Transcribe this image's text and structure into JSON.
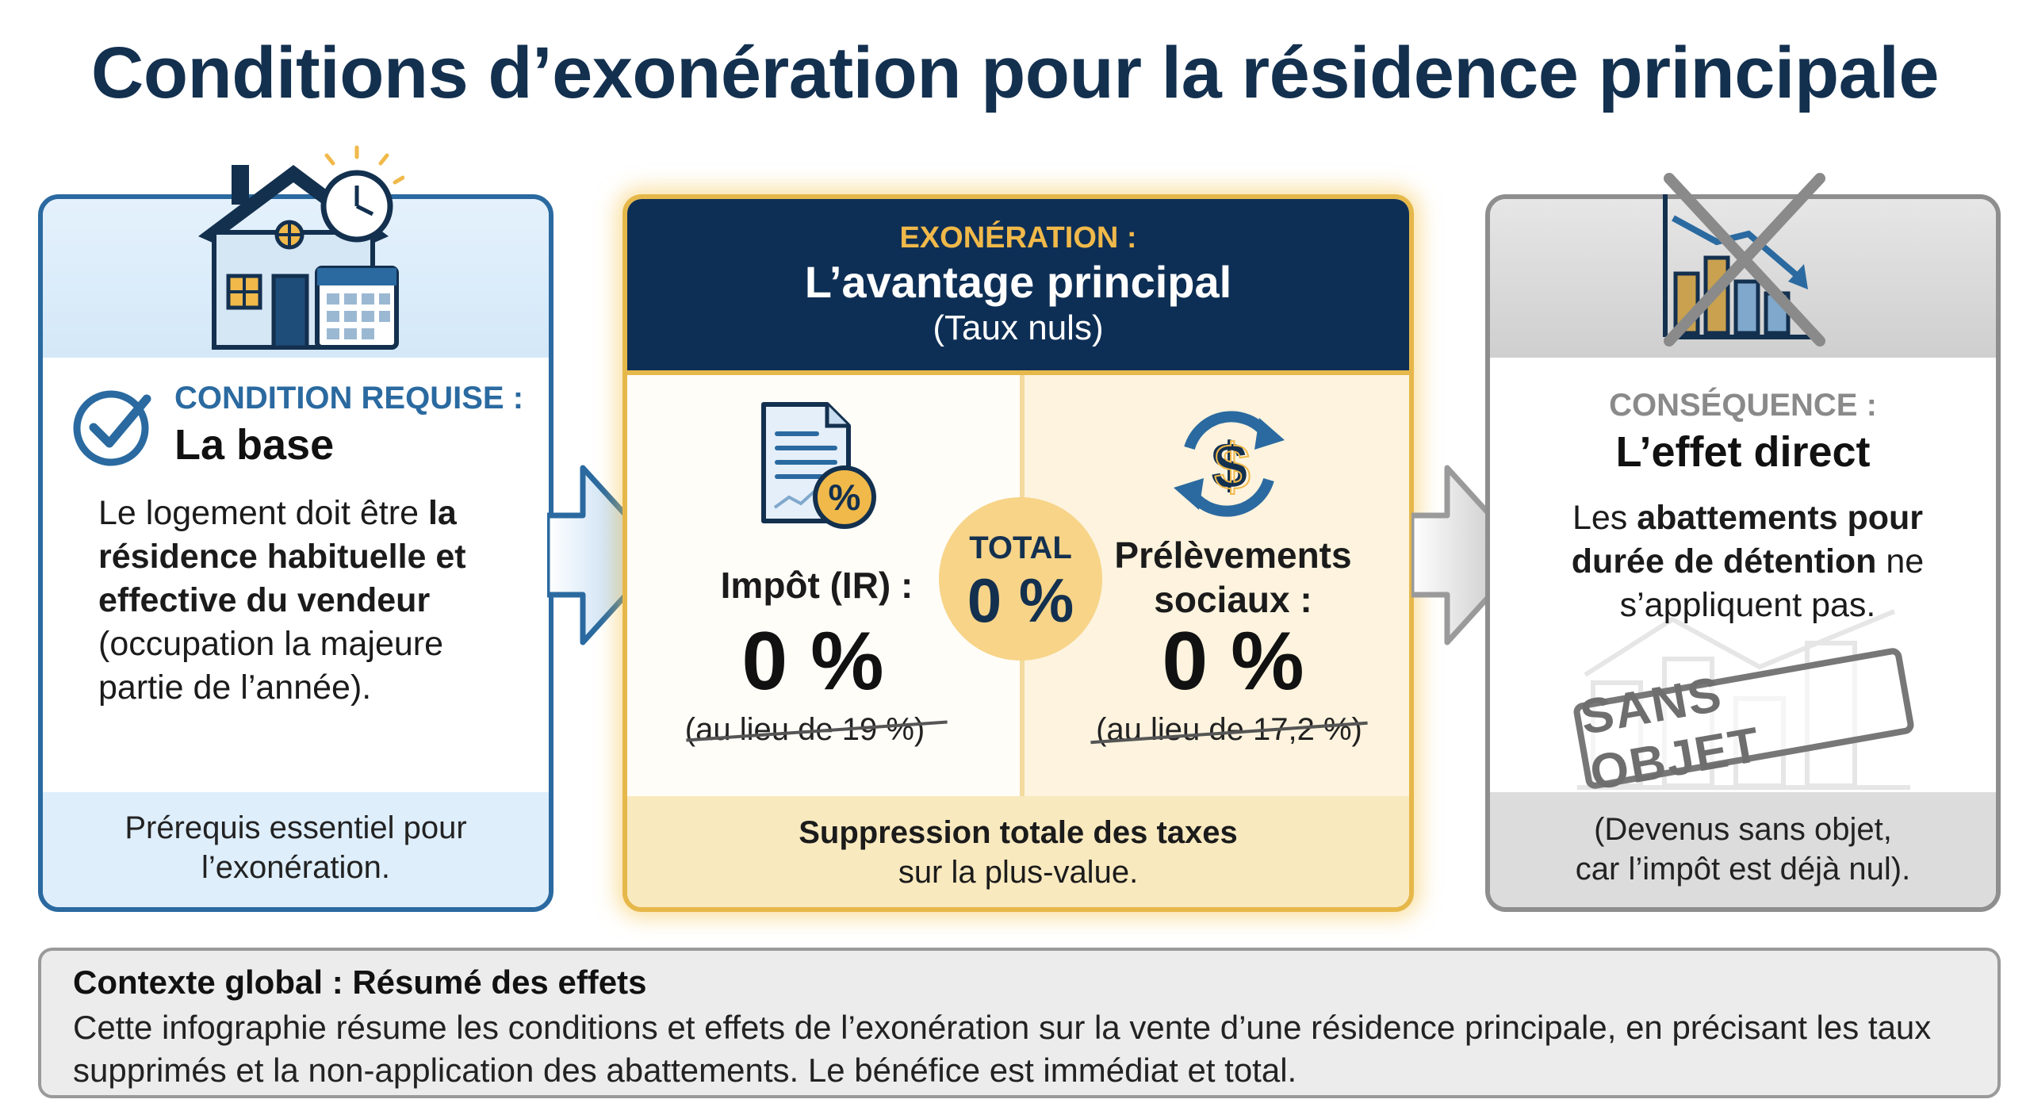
{
  "title": "Conditions d’exonération pour la résidence principale",
  "left_panel": {
    "label": "CONDITION REQUISE :",
    "title": "La base",
    "text_1": "Le logement doit être ",
    "text_bold": "la résidence habituelle et effective du vendeur",
    "text_2": " (occupation la majeure partie de l’année).",
    "footer_line1": "Prérequis essentiel pour",
    "footer_line2": "l’exonération.",
    "icon": "house-clock-calendar-icon",
    "accent": "#2a6aa0"
  },
  "middle_panel": {
    "label": "EXONÉRATION :",
    "title": "L’avantage principal",
    "subtitle": "(Taux nuls)",
    "ir": {
      "label": "Impôt (IR) :",
      "value": "0 %",
      "was": "(au lieu de 19 %)",
      "icon": "document-percent-icon"
    },
    "ps": {
      "label_line1": "Prélèvements",
      "label_line2": "sociaux :",
      "value": "0 %",
      "was": "(au lieu de 17,2 %)",
      "icon": "currency-cycle-icon"
    },
    "total": {
      "label": "TOTAL",
      "value": "0 %"
    },
    "footer_bold": "Suppression totale des taxes",
    "footer_text": "sur la plus-value.",
    "accent": "#e6b84a",
    "header_bg": "#0e2f55"
  },
  "right_panel": {
    "label": "CONSÉQUENCE :",
    "title": "L’effet direct",
    "text_1": "Les ",
    "text_bold": "abattements pour durée de détention",
    "text_2": " ne s’appliquent pas.",
    "stamp": "SANS OBJET",
    "footer_line1": "(Devenus sans objet,",
    "footer_line2": "car l’impôt est déjà nul).",
    "icon": "crossed-chart-icon",
    "accent": "#8e8e8e"
  },
  "context": {
    "heading": "Contexte global : Résumé des effets",
    "text": "Cette infographie résume les conditions et effets de l’exonération sur la vente d’une résidence principale, en précisant les taux supprimés et la non-application des abattements. Le bénéfice est immédiat et total."
  }
}
